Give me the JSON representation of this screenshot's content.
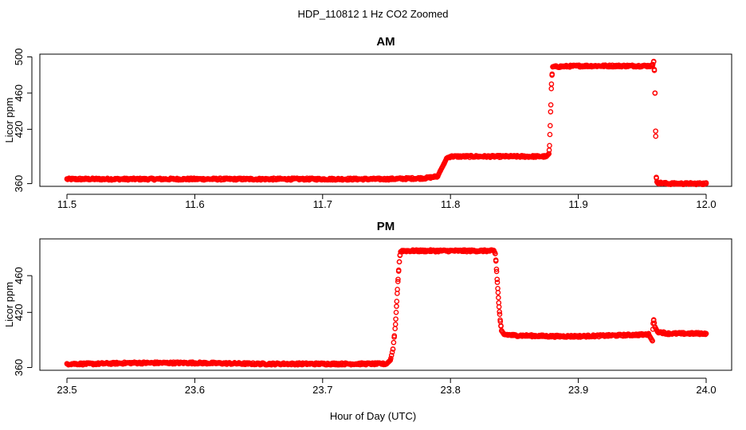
{
  "figure": {
    "title": "HDP_110812  1 Hz CO2 Zoomed",
    "xlabel": "Hour of Day (UTC)"
  },
  "colors": {
    "points": "#ff0000"
  },
  "chart_data": [
    {
      "type": "scatter",
      "title": "AM",
      "xlabel": "",
      "ylabel": "Licor ppm",
      "xlim": [
        11.5,
        12.0
      ],
      "ylim": [
        357,
        503
      ],
      "xticks": [
        11.5,
        11.6,
        11.7,
        11.8,
        11.9,
        12.0
      ],
      "xtick_labels": [
        "11.5",
        "11.6",
        "11.7",
        "11.8",
        "11.9",
        "12.0"
      ],
      "yticks": [
        360,
        420,
        460,
        500
      ],
      "ytick_labels": [
        "360",
        "420",
        "460",
        "500"
      ],
      "marker": "open-circle",
      "series": [
        {
          "values_x": [
            11.5,
            11.52,
            11.55,
            11.6,
            11.65,
            11.7,
            11.75,
            11.78,
            11.79,
            11.792,
            11.795,
            11.797,
            11.8,
            11.82,
            11.85,
            11.875,
            11.877,
            11.8775,
            11.878,
            11.8785,
            11.879,
            11.8795,
            11.88,
            11.9,
            11.92,
            11.94,
            11.958,
            11.959,
            11.9595,
            11.96,
            11.9605,
            11.961,
            11.9615,
            11.962,
            11.97,
            11.985,
            12.0
          ],
          "values_y": [
            365,
            365,
            365,
            365,
            365,
            365,
            365,
            366,
            368,
            374,
            382,
            388,
            390,
            390,
            390,
            390,
            393,
            402,
            424,
            447,
            470,
            481,
            489,
            490,
            490,
            490,
            490,
            495,
            485,
            460,
            418,
            367,
            362,
            361,
            360,
            360,
            360
          ]
        }
      ]
    },
    {
      "type": "scatter",
      "title": "PM",
      "xlabel": "",
      "ylabel": "Licor ppm",
      "xlim": [
        23.5,
        24.0
      ],
      "ylim": [
        357,
        500
      ],
      "xticks": [
        23.5,
        23.6,
        23.7,
        23.8,
        23.9,
        24.0
      ],
      "xtick_labels": [
        "23.5",
        "23.6",
        "23.7",
        "23.8",
        "23.9",
        "24.0"
      ],
      "yticks": [
        360,
        420,
        460
      ],
      "ytick_labels": [
        "360",
        "420",
        "460"
      ],
      "marker": "open-circle",
      "series": [
        {
          "values_x": [
            23.5,
            23.52,
            23.55,
            23.6,
            23.65,
            23.7,
            23.74,
            23.75,
            23.753,
            23.755,
            23.756,
            23.757,
            23.7575,
            23.758,
            23.7585,
            23.759,
            23.7595,
            23.76,
            23.7605,
            23.761,
            23.762,
            23.78,
            23.8,
            23.82,
            23.834,
            23.835,
            23.8355,
            23.836,
            23.8365,
            23.837,
            23.8375,
            23.838,
            23.8385,
            23.839,
            23.8395,
            23.84,
            23.842,
            23.85,
            23.88,
            23.9,
            23.93,
            23.955,
            23.958,
            23.9585,
            23.959,
            23.96,
            23.962,
            23.97,
            23.98,
            24.0
          ],
          "values_y": [
            364,
            364,
            365,
            365,
            364,
            364,
            364,
            364,
            368,
            380,
            393,
            407,
            420,
            432,
            445,
            456,
            466,
            475,
            482,
            486,
            487,
            487,
            487,
            487,
            487,
            484,
            477,
            467,
            456,
            446,
            436,
            426,
            418,
            410,
            405,
            400,
            396,
            395,
            394,
            394,
            395,
            396,
            389,
            408,
            412,
            404,
            399,
            397,
            397,
            397
          ]
        }
      ]
    }
  ]
}
